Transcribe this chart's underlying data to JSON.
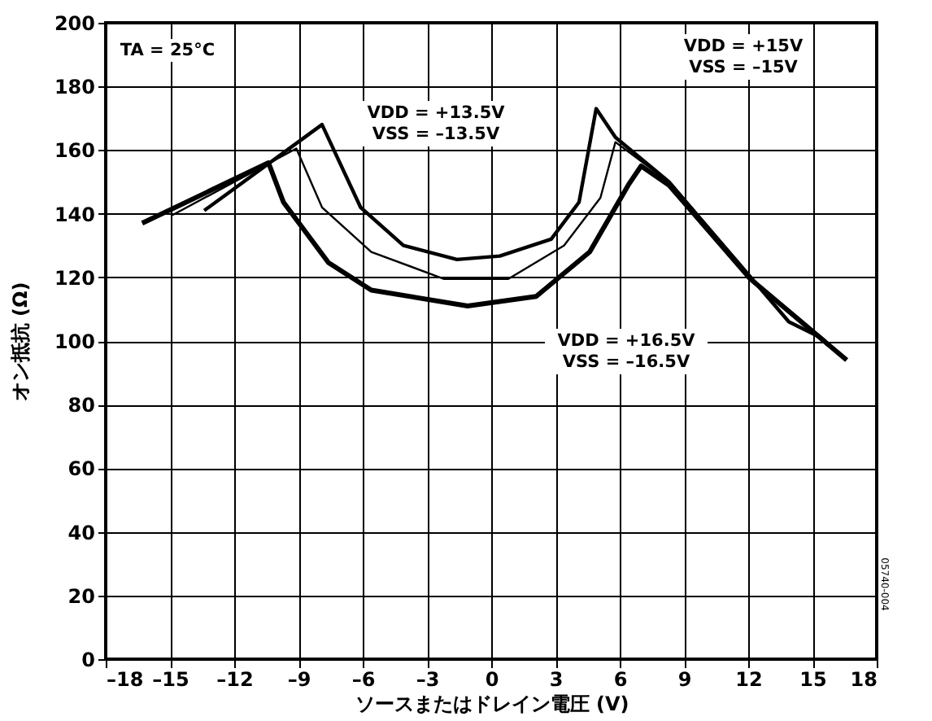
{
  "chart_data": {
    "type": "line",
    "xlabel": "ソースまたはドレイン電圧 (V)",
    "ylabel": "オン抵抗 (Ω)",
    "xlim": [
      -18,
      18
    ],
    "ylim": [
      0,
      200
    ],
    "xticks": [
      {
        "value": -18,
        "label": "–18"
      },
      {
        "value": -15,
        "label": "–15"
      },
      {
        "value": -12,
        "label": "–12"
      },
      {
        "value": -9,
        "label": "–9"
      },
      {
        "value": -6,
        "label": "–6"
      },
      {
        "value": -3,
        "label": "–3"
      },
      0,
      3,
      6,
      9,
      12,
      15,
      18
    ],
    "yticks": [
      0,
      20,
      40,
      60,
      80,
      100,
      120,
      140,
      160,
      180,
      200
    ],
    "grid": true,
    "legend": false,
    "marker": "none",
    "line_style": "solid",
    "series": [
      {
        "color": "#000000",
        "x": [
          -13.4,
          -7.9,
          -6.1,
          -4.1,
          -1.6,
          0.4,
          2.8,
          4.1,
          4.9,
          5.8,
          8.3,
          13.9,
          15.4
        ],
        "values": [
          141,
          168,
          142,
          130,
          125.6,
          126.7,
          132,
          143.6,
          173,
          164,
          150,
          106,
          101
        ]
      },
      {
        "color": "#000000",
        "x": [
          -14.9,
          -9.1,
          -7.9,
          -5.6,
          -2.2,
          0.8,
          3.4,
          5.1,
          5.8,
          8.3,
          12.1,
          15.4
        ],
        "values": [
          139.5,
          160.5,
          142,
          128,
          119.5,
          119.5,
          130,
          145,
          162.5,
          150,
          119.5,
          101
        ]
      },
      {
        "color": "#000000",
        "x": [
          -16.3,
          -10.4,
          -9.7,
          -7.6,
          -5.6,
          -1.1,
          2.1,
          4.6,
          6.4,
          7.0,
          8.3,
          12.1,
          16.6
        ],
        "values": [
          137,
          156,
          143.6,
          124.6,
          116,
          111,
          114,
          128,
          149,
          155,
          149,
          119.5,
          94
        ]
      }
    ],
    "annotations": [
      "TA = 25°C",
      "VDD = +13.5V\nVSS = –13.5V",
      "VDD = +15V\nVSS = –15V",
      "VDD = +16.5V\nVSS = –16.5V",
      "05740-004"
    ]
  }
}
